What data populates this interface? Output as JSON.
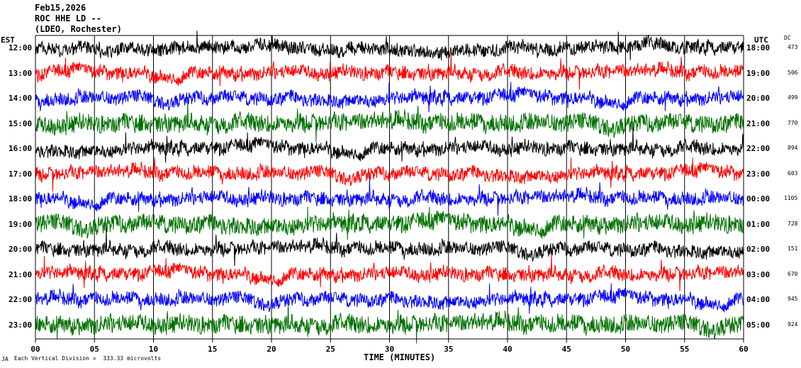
{
  "header": {
    "date": "Feb15,2026",
    "station": "ROC HHE LD --",
    "network": "(LDEO, Rochester)"
  },
  "labels": {
    "left_zone": "EST",
    "right_zone": "UTC",
    "dc_title": "DC",
    "xaxis_title": "TIME (MINUTES)",
    "footer": "Each Vertical Division =  333.33 microvolts",
    "footer_mark": "JA"
  },
  "chart_data": {
    "type": "line",
    "xlabel": "TIME (MINUTES)",
    "xlim": [
      0,
      60
    ],
    "x_ticks": [
      "00",
      "05",
      "10",
      "15",
      "20",
      "25",
      "30",
      "35",
      "40",
      "45",
      "50",
      "55",
      "60"
    ],
    "series_colors": [
      "#000000",
      "#ff0000",
      "#0000ff",
      "#007000"
    ],
    "rows": [
      {
        "est": "12:00",
        "utc": "18:00",
        "dc": "473",
        "color": "#000000"
      },
      {
        "est": "13:00",
        "utc": "19:00",
        "dc": "506",
        "color": "#ff0000"
      },
      {
        "est": "14:00",
        "utc": "20:00",
        "dc": "499",
        "color": "#0000ff"
      },
      {
        "est": "15:00",
        "utc": "21:00",
        "dc": "770",
        "color": "#007000"
      },
      {
        "est": "16:00",
        "utc": "22:00",
        "dc": "894",
        "color": "#000000"
      },
      {
        "est": "17:00",
        "utc": "23:00",
        "dc": "603",
        "color": "#ff0000"
      },
      {
        "est": "18:00",
        "utc": "00:00",
        "dc": "1105",
        "color": "#0000ff"
      },
      {
        "est": "19:00",
        "utc": "01:00",
        "dc": "728",
        "color": "#007000"
      },
      {
        "est": "20:00",
        "utc": "02:00",
        "dc": "151",
        "color": "#000000"
      },
      {
        "est": "21:00",
        "utc": "03:00",
        "dc": "670",
        "color": "#ff0000"
      },
      {
        "est": "22:00",
        "utc": "04:00",
        "dc": "945",
        "color": "#0000ff"
      },
      {
        "est": "23:00",
        "utc": "05:00",
        "dc": "924",
        "color": "#007000"
      }
    ]
  }
}
